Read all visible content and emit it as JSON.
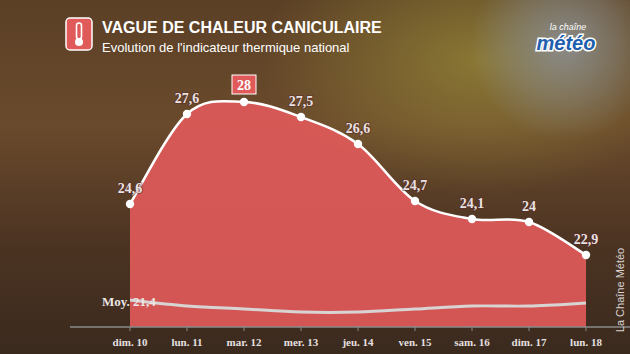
{
  "chart_data": {
    "type": "area",
    "title": "VAGUE DE CHALEUR CANICULAIRE",
    "subtitle": "Evolution de l'indicateur thermique national",
    "categories": [
      "dim. 10",
      "lun. 11",
      "mar. 12",
      "mer. 13",
      "jeu. 14",
      "ven. 15",
      "sam. 16",
      "dim. 17",
      "lun. 18"
    ],
    "series": [
      {
        "color": "#e05a5a",
        "values": [
          24.6,
          27.6,
          28,
          27.5,
          26.6,
          24.7,
          24.1,
          24,
          22.9
        ],
        "value_labels": [
          "24,6",
          "27,6",
          "28",
          "27,5",
          "26,6",
          "24,7",
          "24,1",
          "24",
          "22,9"
        ]
      },
      {
        "name": "Moy.",
        "type": "line",
        "color": "#d9d4d4",
        "values": [
          21.4,
          21.2,
          21.1,
          21.0,
          21.0,
          21.1,
          21.2,
          21.2,
          21.3
        ],
        "value_labels": [
          "21,4",
          null,
          null,
          null,
          null,
          null,
          null,
          null,
          null
        ]
      }
    ],
    "ylim": [
      20.5,
      31.3
    ],
    "data_labels": true,
    "tick_labels": "x",
    "annotations": [
      "La Chaîne Météo"
    ],
    "logo": [
      "la chaîne",
      "météo"
    ]
  }
}
